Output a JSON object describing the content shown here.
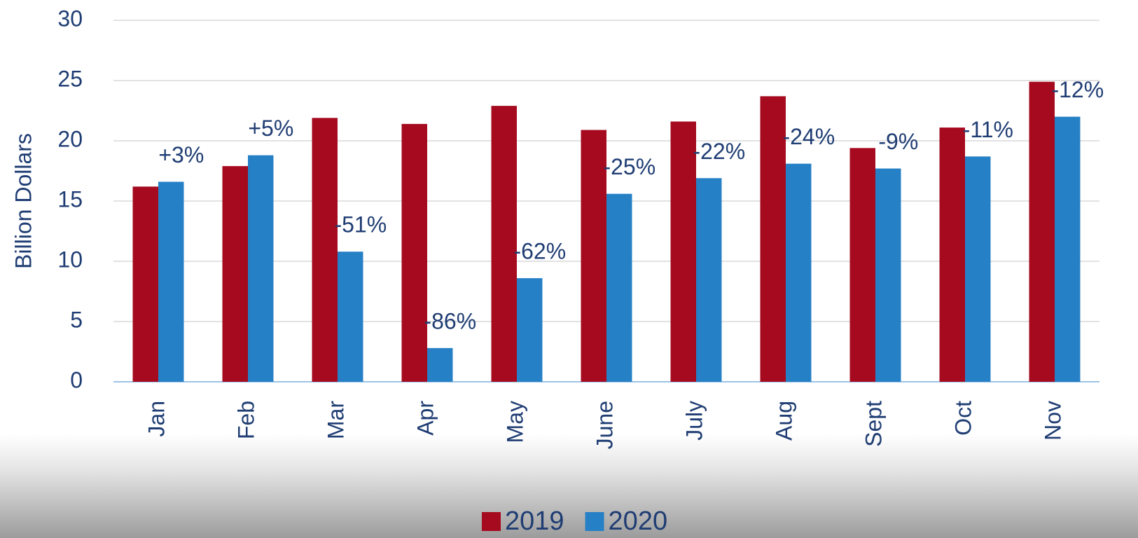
{
  "chart_data": {
    "type": "bar",
    "y_label": "Billion Dollars",
    "categories": [
      "Jan",
      "Feb",
      "Mar",
      "Apr",
      "May",
      "June",
      "July",
      "Aug",
      "Sept",
      "Oct",
      "Nov"
    ],
    "series": [
      {
        "name": "2019",
        "color": "#a50a1e",
        "values": [
          16.2,
          17.9,
          21.9,
          21.4,
          22.9,
          20.9,
          21.6,
          23.7,
          19.4,
          21.1,
          24.9
        ]
      },
      {
        "name": "2020",
        "color": "#2580c6",
        "values": [
          16.6,
          18.8,
          10.8,
          2.8,
          8.6,
          15.6,
          16.9,
          18.1,
          17.7,
          18.7,
          22.0
        ]
      }
    ],
    "annotations": [
      "+3%",
      "+5%",
      "-51%",
      "-86%",
      "-62%",
      "-25%",
      "-22%",
      "-24%",
      "-9%",
      "-11%",
      "-12%"
    ],
    "ylim": [
      0,
      30
    ],
    "yticks": [
      0,
      5,
      10,
      15,
      20,
      25,
      30
    ],
    "grid": true,
    "legend": "bottom"
  }
}
